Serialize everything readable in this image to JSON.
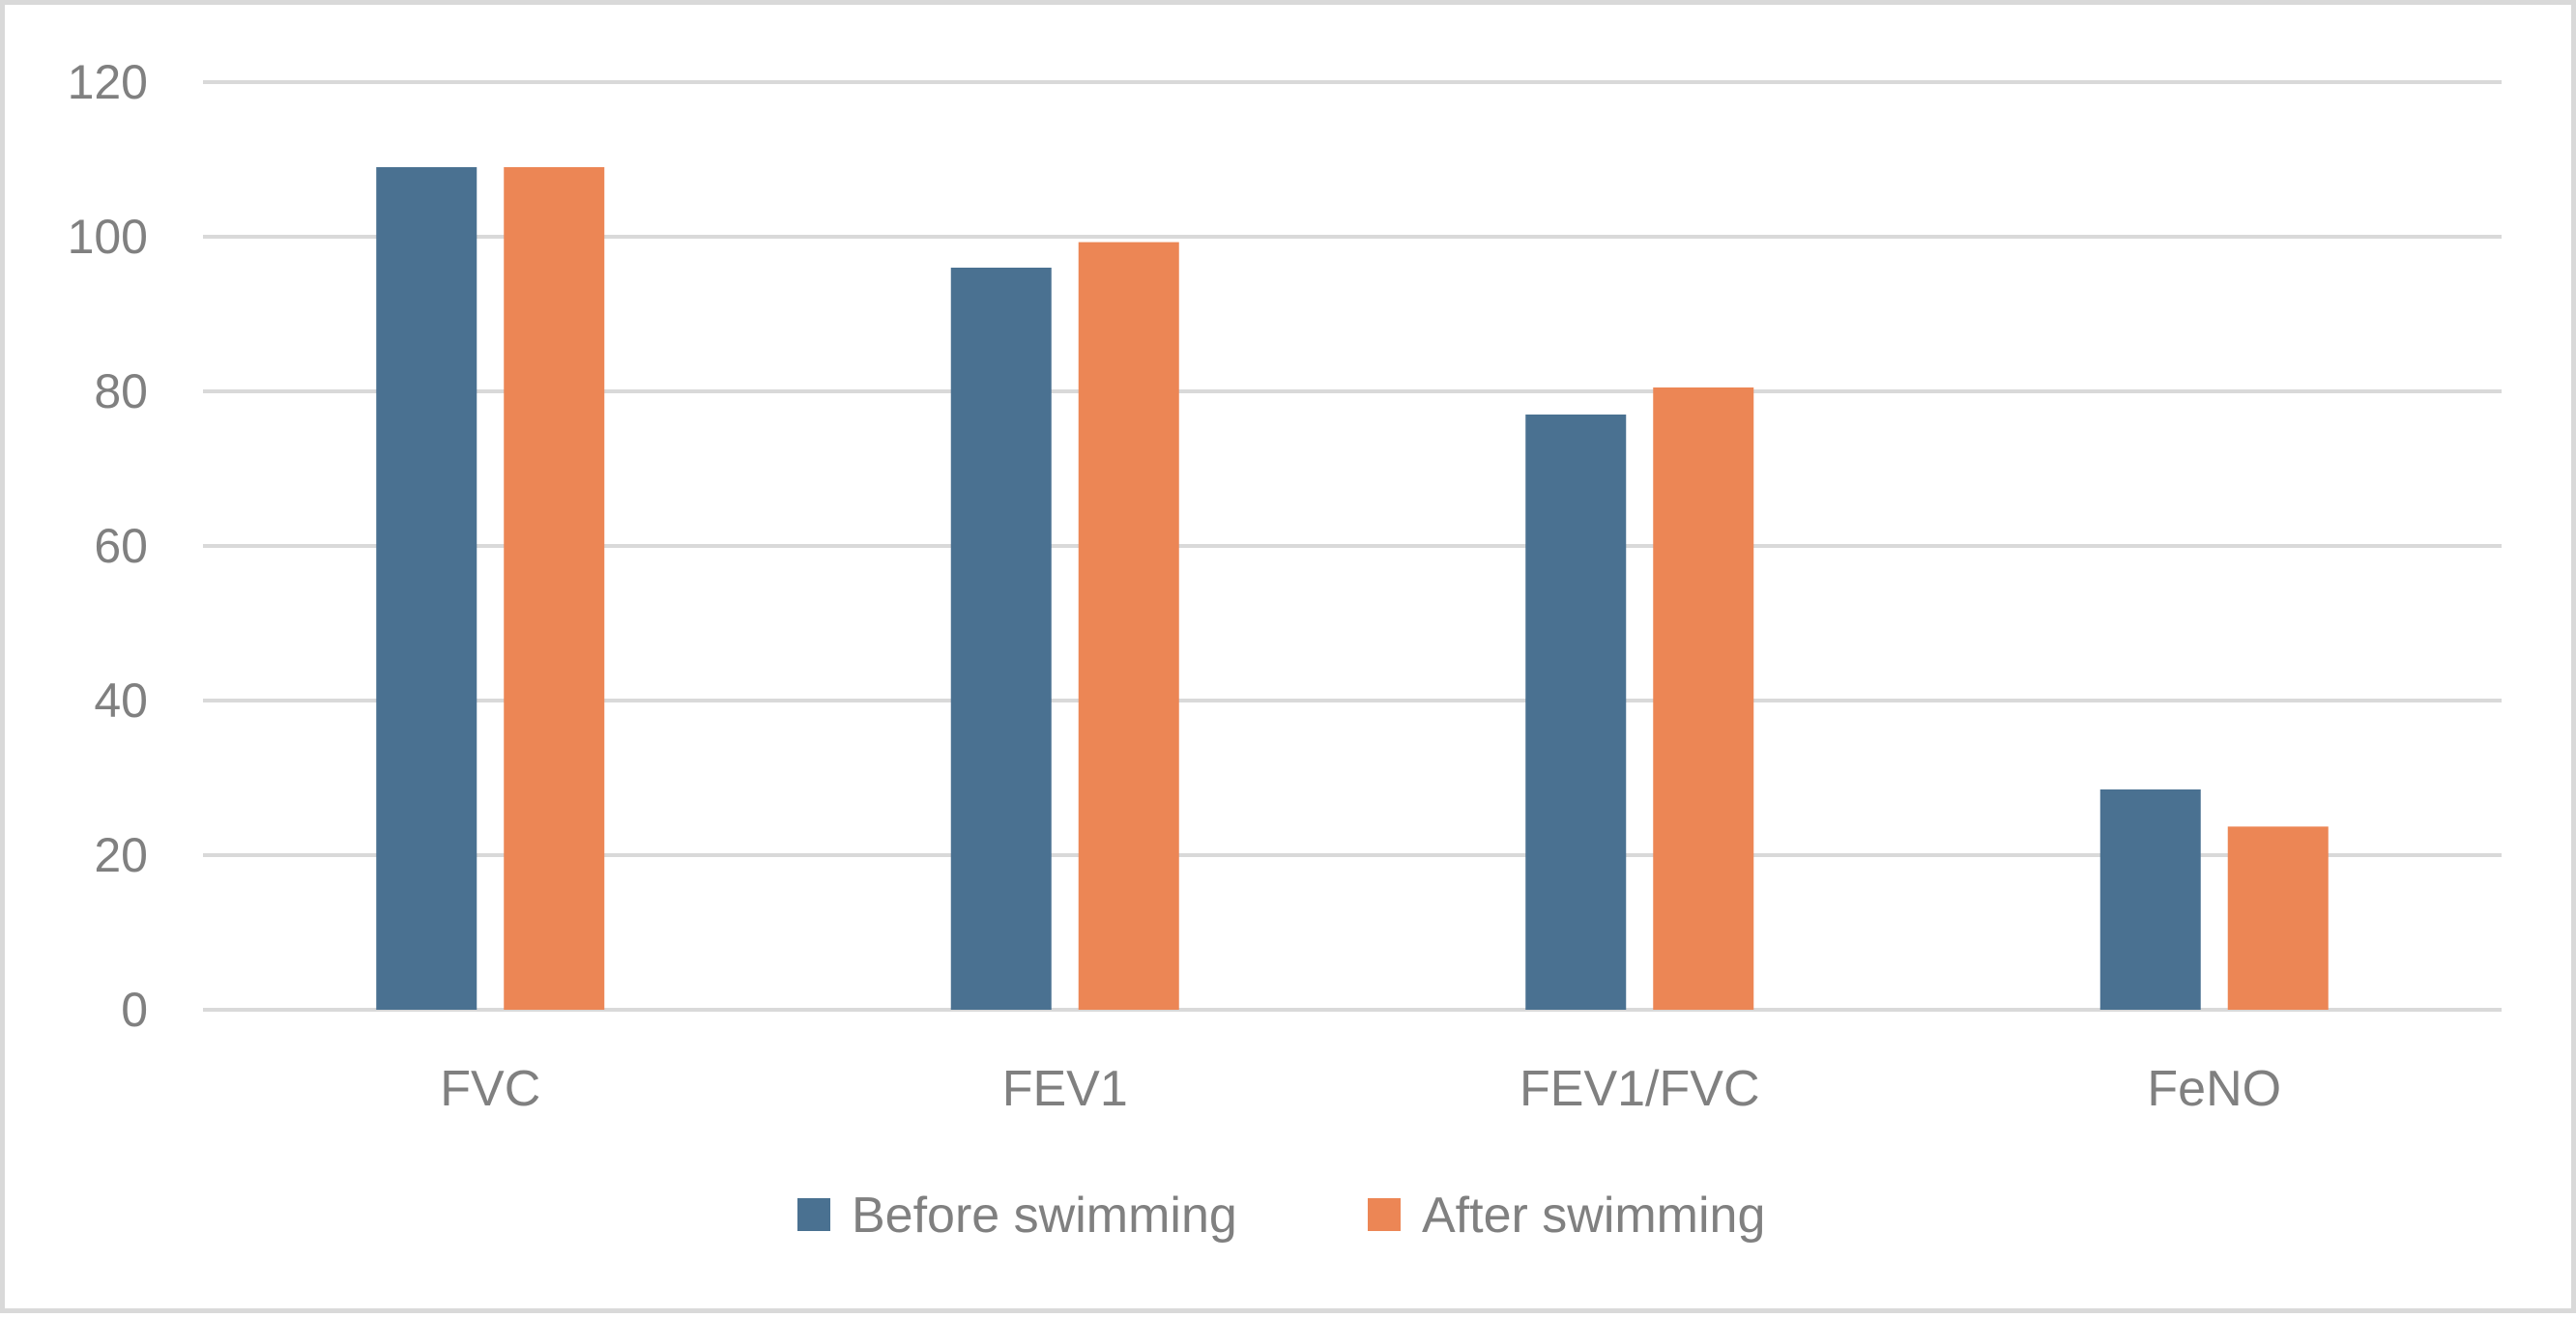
{
  "chart_data": {
    "type": "bar",
    "title": "",
    "xlabel": "",
    "ylabel": "",
    "categories": [
      "FVC",
      "FEV1",
      "FEV1/FVC",
      "FeNO"
    ],
    "series": [
      {
        "name": "Before swimming",
        "color": "#4a7191",
        "values": [
          109,
          96,
          77,
          28.5
        ]
      },
      {
        "name": "After swimming",
        "color": "#ec8655",
        "values": [
          109,
          99.3,
          80.5,
          23.7
        ]
      }
    ],
    "ylim": [
      0,
      120
    ],
    "yticks": [
      0,
      20,
      40,
      60,
      80,
      100,
      120
    ],
    "grid": true,
    "gridline_color": "#d9d9d9",
    "text_color": "#808080",
    "legend_position": "bottom"
  }
}
